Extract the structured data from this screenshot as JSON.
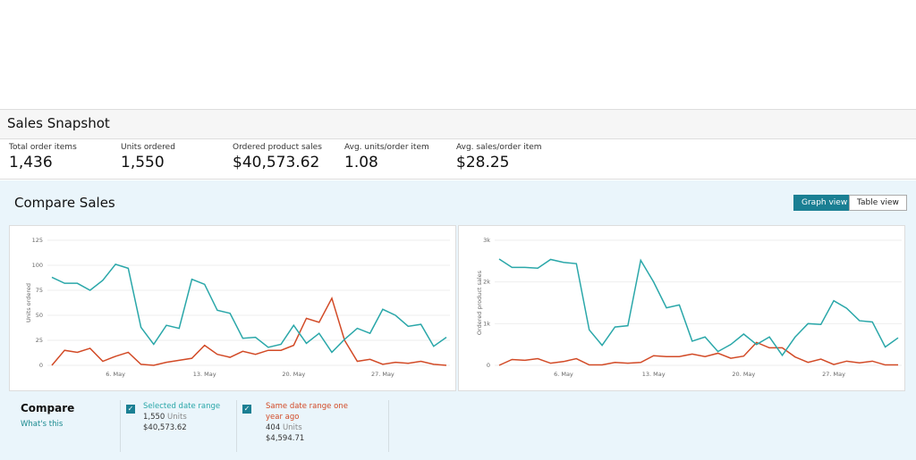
{
  "snapshot": {
    "title": "Sales Snapshot",
    "metrics": [
      {
        "label": "Total order items",
        "value": "1,436"
      },
      {
        "label": "Units ordered",
        "value": "1,550"
      },
      {
        "label": "Ordered product sales",
        "value": "$40,573.62"
      },
      {
        "label": "Avg. units/order item",
        "value": "1.08"
      },
      {
        "label": "Avg. sales/order item",
        "value": "$28.25"
      }
    ]
  },
  "compare": {
    "title": "Compare Sales",
    "graph_view": "Graph view",
    "table_view": "Table view",
    "legend": {
      "title": "Compare",
      "whats_this": "What's this",
      "selected": {
        "label": "Selected date range",
        "units": "1,550",
        "units_suffix": "Units",
        "sales": "$40,573.62"
      },
      "last_year": {
        "label": "Same date range one year ago",
        "units": "404",
        "units_suffix": "Units",
        "sales": "$4,594.71"
      }
    }
  },
  "colors": {
    "selected": "#2aa7a9",
    "last_year": "#d24a26",
    "accent": "#1a7f93"
  },
  "chart_data": [
    {
      "type": "line",
      "ylabel": "Units ordered",
      "ylim": [
        0,
        125
      ],
      "yticks": [
        "0",
        "25",
        "50",
        "75",
        "100",
        "125"
      ],
      "ytick_values": [
        0,
        25,
        50,
        75,
        100,
        125
      ],
      "xticks": [
        "6. May",
        "13. May",
        "20. May",
        "27. May"
      ],
      "xtick_index": [
        5,
        12,
        19,
        26
      ],
      "grid": true,
      "series": [
        {
          "values": [
            88,
            82,
            82,
            75,
            85,
            101,
            97,
            38,
            21,
            40,
            37,
            86,
            81,
            55,
            52,
            27,
            28,
            18,
            21,
            40,
            22,
            32,
            13,
            26,
            37,
            32,
            56,
            50,
            39,
            41,
            19,
            28
          ]
        },
        {
          "values": [
            0,
            15,
            13,
            17,
            4,
            9,
            13,
            1,
            0,
            3,
            5,
            7,
            20,
            11,
            8,
            14,
            11,
            15,
            15,
            20,
            47,
            43,
            67,
            25,
            4,
            6,
            1,
            3,
            2,
            4,
            1,
            0
          ]
        }
      ]
    },
    {
      "type": "line",
      "ylabel": "Ordered product sales",
      "ylim": [
        0,
        3000
      ],
      "yticks": [
        "0",
        "1k",
        "2k",
        "3k"
      ],
      "ytick_values": [
        0,
        1000,
        2000,
        3000
      ],
      "xticks": [
        "6. May",
        "13. May",
        "20. May",
        "27. May"
      ],
      "xtick_index": [
        5,
        12,
        19,
        26
      ],
      "grid": true,
      "series": [
        {
          "values": [
            2550,
            2350,
            2350,
            2330,
            2540,
            2470,
            2440,
            850,
            480,
            920,
            950,
            2520,
            2000,
            1380,
            1450,
            580,
            680,
            330,
            500,
            750,
            500,
            680,
            240,
            680,
            1000,
            980,
            1550,
            1370,
            1070,
            1040,
            440,
            660
          ]
        },
        {
          "values": [
            0,
            140,
            120,
            160,
            50,
            90,
            160,
            10,
            10,
            70,
            50,
            70,
            230,
            210,
            210,
            270,
            210,
            290,
            170,
            220,
            550,
            420,
            420,
            200,
            70,
            150,
            20,
            100,
            60,
            100,
            10,
            10
          ]
        }
      ]
    }
  ]
}
